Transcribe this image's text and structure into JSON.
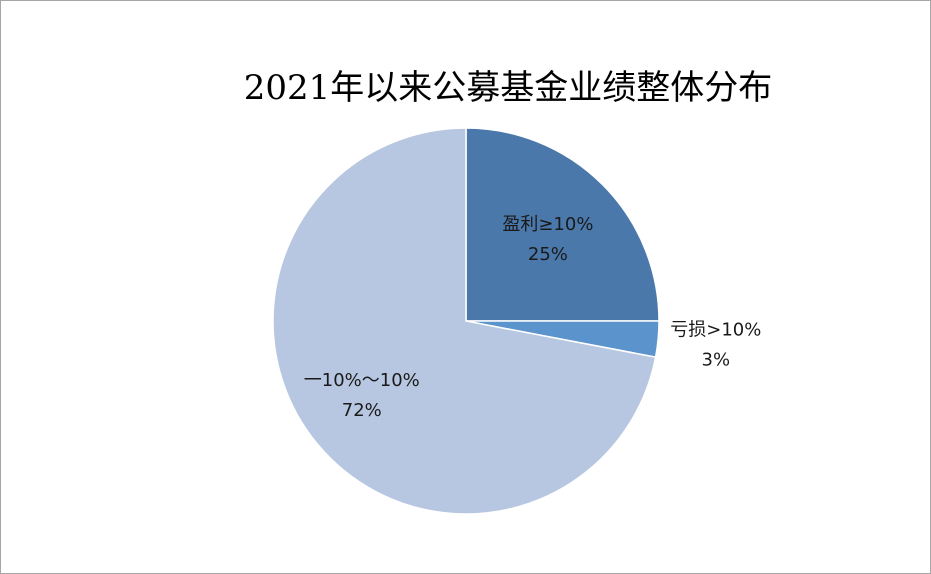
{
  "chart_data": {
    "type": "pie",
    "title": "2021年以来公募基金业绩整体分布",
    "categories": [
      "盈利≥10%",
      "亏损>10%",
      "一10%～10%"
    ],
    "values": [
      25,
      3,
      72
    ],
    "value_labels": [
      "25%",
      "3%",
      "72%"
    ],
    "colors": [
      "#4a78ab",
      "#5b93cc",
      "#b8c7e1"
    ]
  }
}
